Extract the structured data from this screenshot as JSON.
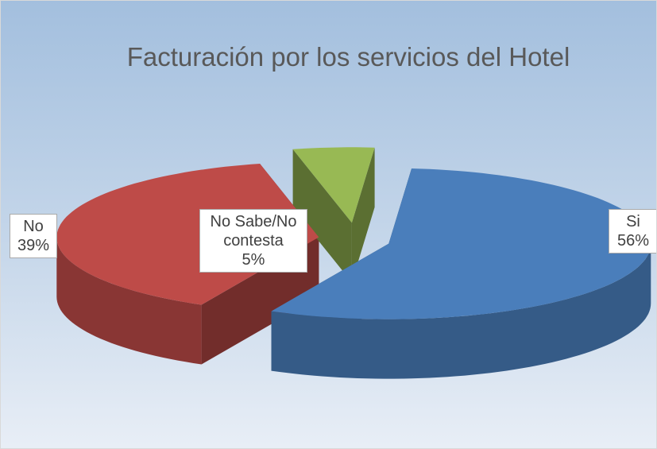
{
  "chart_data": {
    "type": "pie3d",
    "title": "Facturación por los servicios del Hotel",
    "categories": [
      "Si",
      "No",
      "No Sabe/No contesta"
    ],
    "values": [
      56,
      39,
      5
    ],
    "value_labels": [
      "56%",
      "39%",
      "5%"
    ],
    "colors": [
      "#4a7ebb",
      "#be4b48",
      "#98b954"
    ]
  }
}
